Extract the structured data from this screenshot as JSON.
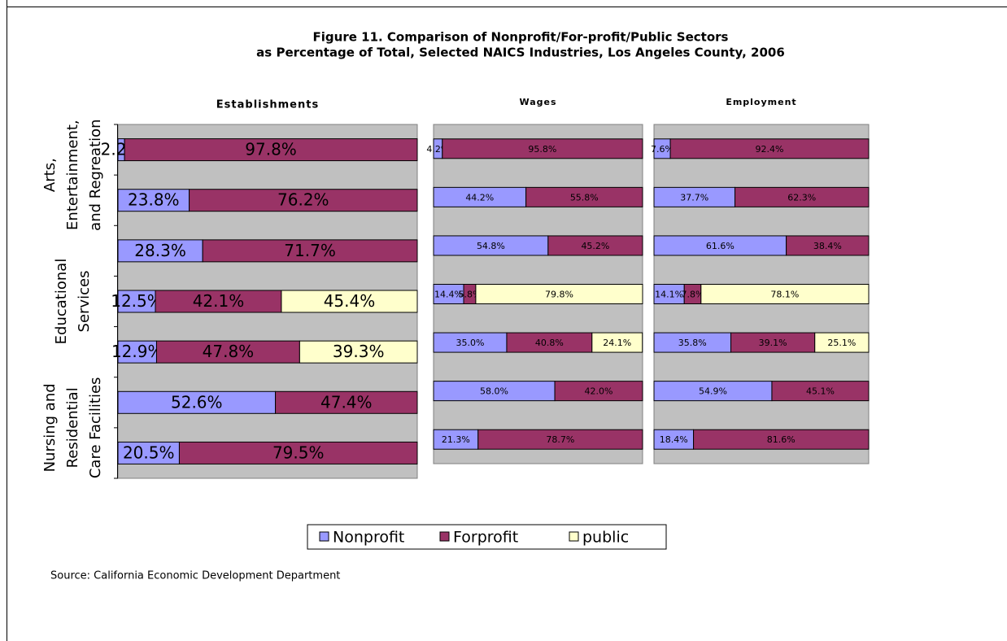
{
  "chart_data": {
    "type": "bar",
    "orientation": "horizontal",
    "stacked": true,
    "title": "Figure 11. Comparison of Nonprofit/For-profit/Public Sectors",
    "subtitle": "as Percentage of Total, Selected NAICS Industries, Los Angeles County, 2006",
    "source": "Source: California Economic Development Department",
    "categories": [
      null,
      null,
      null,
      null,
      null,
      null,
      null
    ],
    "category_groups": [
      [
        "Arts,",
        "Entertainment,",
        "and Regreation"
      ],
      [
        "Educational",
        "Services"
      ],
      [
        "Nursing and",
        "Residential",
        "Care Facilities"
      ]
    ],
    "xlim": [
      0,
      100
    ],
    "series": [
      {
        "name": "Nonprofit",
        "color": "#9999ff"
      },
      {
        "name": "Forprofit",
        "color": "#993366"
      },
      {
        "name": "public",
        "color": "#ffffcc"
      }
    ],
    "panels": [
      {
        "title": "Establishments",
        "values": [
          [
            2.2,
            23.8,
            28.3,
            12.5,
            12.9,
            52.6,
            20.5
          ],
          [
            97.8,
            76.2,
            71.7,
            42.1,
            47.8,
            47.4,
            79.5
          ],
          [
            null,
            null,
            null,
            45.4,
            39.3,
            null,
            null
          ]
        ],
        "value_labels": [
          [
            "2.2%",
            "23.8%",
            "28.3%",
            "12.5%",
            "12.9%",
            "52.6%",
            "20.5%"
          ],
          [
            "97.8%",
            "76.2%",
            "71.7%",
            "42.1%",
            "47.8%",
            "47.4%",
            "79.5%"
          ],
          [
            null,
            null,
            null,
            "45.4%",
            "39.3%",
            null,
            null
          ]
        ]
      },
      {
        "title": "Wages",
        "values": [
          [
            4.2,
            44.2,
            54.8,
            14.4,
            35,
            58,
            21.3
          ],
          [
            95.8,
            55.8,
            45.2,
            5.8,
            40.8,
            42,
            78.7
          ],
          [
            null,
            null,
            null,
            79.8,
            24.1,
            null,
            null
          ]
        ],
        "value_labels": [
          [
            "4.2%",
            "44.2%",
            "54.8%",
            "14.4%",
            "35.0%",
            "58.0%",
            "21.3%"
          ],
          [
            "95.8%",
            "55.8%",
            "45.2%",
            "5.8%",
            "40.8%",
            "42.0%",
            "78.7%"
          ],
          [
            null,
            null,
            null,
            "79.8%",
            "24.1%",
            null,
            null
          ]
        ]
      },
      {
        "title": "Employment",
        "values": [
          [
            7.6,
            37.7,
            61.6,
            14.1,
            35.8,
            54.9,
            18.4
          ],
          [
            92.4,
            62.3,
            38.4,
            7.8,
            39.1,
            45.1,
            81.6
          ],
          [
            null,
            null,
            null,
            78.1,
            25.1,
            null,
            null
          ]
        ],
        "value_labels": [
          [
            "7.6%",
            "37.7%",
            "61.6%",
            "14.1%",
            "35.8%",
            "54.9%",
            "18.4%"
          ],
          [
            "92.4%",
            "62.3%",
            "38.4%",
            "7.8%",
            "39.1%",
            "45.1%",
            "81.6%"
          ],
          [
            null,
            null,
            null,
            "78.1%",
            "25.1%",
            null,
            null
          ]
        ]
      }
    ]
  }
}
